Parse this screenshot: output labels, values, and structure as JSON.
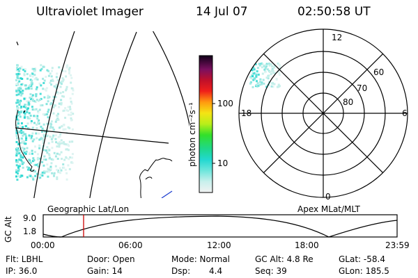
{
  "header": {
    "instrument": "Ultraviolet Imager",
    "date": "14 Jul 07",
    "time": "02:50:58 UT"
  },
  "colorbar": {
    "unit_label": "photon cm⁻²s⁻¹",
    "ticks": [
      "100",
      "10"
    ]
  },
  "polar_map": {
    "mlt_labels": {
      "top": "12",
      "bottom": "0",
      "left": "18",
      "right": "6"
    },
    "lat_labels": [
      "60",
      "70",
      "80"
    ]
  },
  "captions": {
    "left": "Geographic Lat/Lon",
    "right": "Apex  MLat/MLT"
  },
  "altitude_plot": {
    "ylabel": "GC Alt",
    "yticks": [
      "9.0",
      "1.8"
    ],
    "xticks": [
      "00:00",
      "06:00",
      "12:00",
      "18:00",
      "23:59"
    ],
    "current_time_marker_color": "#cc0000"
  },
  "status": {
    "flt": "Flt: LBHL",
    "ip": "IP: 36.0",
    "door": "Door: Open",
    "gain": "Gain: 14",
    "mode": "Mode: Normal",
    "dsp_label": "Dsp:",
    "dsp_value": "4.4",
    "gc_alt": "GC Alt: 4.8 Re",
    "seq": "Seq: 39",
    "glat": "GLat: -58.4",
    "glon": "GLon: 185.5"
  }
}
